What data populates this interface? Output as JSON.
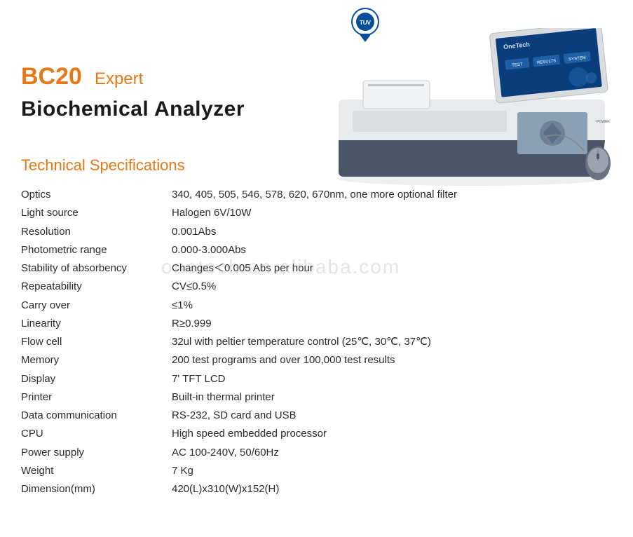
{
  "header": {
    "model": "BC20",
    "variant": "Expert",
    "product_name": "Biochemical  Analyzer"
  },
  "section_title": "Technical Specifications",
  "specs": [
    {
      "label": "Optics",
      "value": "340, 405, 505, 546, 578, 620, 670nm, one more optional filter"
    },
    {
      "label": "Light source",
      "value": "Halogen 6V/10W"
    },
    {
      "label": "Resolution",
      "value": "0.001Abs"
    },
    {
      "label": "Photometric range",
      "value": "0.000-3.000Abs"
    },
    {
      "label": "Stability of absorbency",
      "value": "Changes＜0.005 Abs per hour"
    },
    {
      "label": "Repeatability",
      "value": "CV≤0.5%"
    },
    {
      "label": "Carry over",
      "value": "≤1%"
    },
    {
      "label": "Linearity",
      "value": "R≥0.999"
    },
    {
      "label": "Flow cell",
      "value": "32ul with peltier temperature control  (25℃, 30℃, 37℃)"
    },
    {
      "label": "Memory",
      "value": "200 test programs and over 100,000 test results"
    },
    {
      "label": "Display",
      "value": "7' TFT  LCD"
    },
    {
      "label": "Printer",
      "value": "Built-in thermal printer"
    },
    {
      "label": "Data communication",
      "value": "RS-232, SD card and USB"
    },
    {
      "label": "CPU",
      "value": "High speed embedded processor"
    },
    {
      "label": "Power supply",
      "value": "AC 100-240V, 50/60Hz"
    },
    {
      "label": "Weight",
      "value": "7 Kg"
    },
    {
      "label": "Dimension(mm)",
      "value": "420(L)x310(W)x152(H)"
    }
  ],
  "watermark": "onetech.en.alibaba.com",
  "colors": {
    "accent": "#e77817",
    "text": "#2a2a2a",
    "heading": "#1a1a1a"
  },
  "badge": {
    "ring_color": "#0a4f9e",
    "text": "TUV"
  },
  "product_image": {
    "body_top": "#e8eaec",
    "body_bottom": "#4a5568",
    "screen_bg": "#0a3d7a",
    "screen_brand": "OneTech",
    "screen_buttons": [
      "TEST",
      "RESULTS",
      "SYSTEM"
    ],
    "button_bg": "#1e5fa8",
    "touch_panel": "#8aa0b5",
    "mouse": "#6b7280"
  }
}
